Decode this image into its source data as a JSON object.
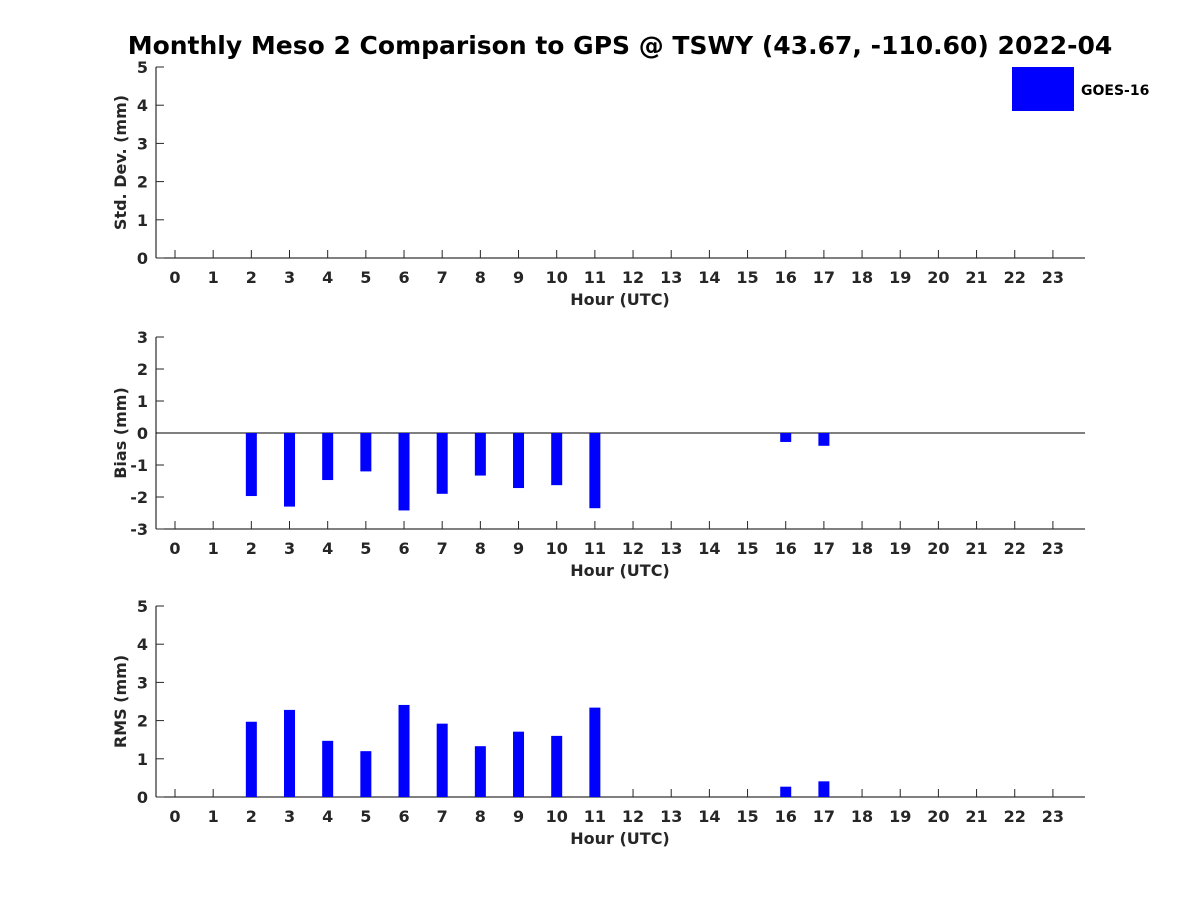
{
  "chart_data": {
    "title": "Monthly Meso 2 Comparison to GPS @ TSWY (43.67, -110.60) 2022-04",
    "legend": {
      "label": "GOES-16",
      "color": "#0000ff",
      "position": "top-right"
    },
    "hours": [
      "0",
      "1",
      "2",
      "3",
      "4",
      "5",
      "6",
      "7",
      "8",
      "9",
      "10",
      "11",
      "12",
      "13",
      "14",
      "15",
      "16",
      "17",
      "18",
      "19",
      "20",
      "21",
      "22",
      "23"
    ],
    "panels": [
      {
        "type": "bar",
        "name": "std-dev",
        "ylabel": "Std. Dev. (mm)",
        "xlabel": "Hour (UTC)",
        "ylim": [
          0,
          5
        ],
        "yticks": [
          "0",
          "1",
          "2",
          "3",
          "4",
          "5"
        ],
        "zero_line": false,
        "series": [
          {
            "name": "GOES-16",
            "values": [
              null,
              null,
              null,
              null,
              null,
              null,
              null,
              null,
              null,
              null,
              null,
              null,
              null,
              null,
              null,
              null,
              null,
              null,
              null,
              null,
              null,
              null,
              null,
              null
            ]
          }
        ]
      },
      {
        "type": "bar",
        "name": "bias",
        "ylabel": "Bias (mm)",
        "xlabel": "Hour (UTC)",
        "ylim": [
          -3,
          3
        ],
        "yticks": [
          "-3",
          "-2",
          "-1",
          "0",
          "1",
          "2",
          "3"
        ],
        "zero_line": true,
        "series": [
          {
            "name": "GOES-16",
            "values": [
              null,
              null,
              -1.97,
              -2.3,
              -1.47,
              -1.2,
              -2.42,
              -1.9,
              -1.33,
              -1.72,
              -1.63,
              -2.35,
              null,
              null,
              null,
              null,
              -0.28,
              -0.4,
              null,
              null,
              null,
              null,
              null,
              null
            ]
          }
        ]
      },
      {
        "type": "bar",
        "name": "rms",
        "ylabel": "RMS (mm)",
        "xlabel": "Hour (UTC)",
        "ylim": [
          0,
          5
        ],
        "yticks": [
          "0",
          "1",
          "2",
          "3",
          "4",
          "5"
        ],
        "zero_line": false,
        "series": [
          {
            "name": "GOES-16",
            "values": [
              null,
              null,
              1.97,
              2.28,
              1.47,
              1.2,
              2.41,
              1.92,
              1.33,
              1.71,
              1.6,
              2.34,
              null,
              null,
              null,
              null,
              0.27,
              0.41,
              null,
              null,
              null,
              null,
              null,
              null
            ]
          }
        ]
      }
    ]
  }
}
